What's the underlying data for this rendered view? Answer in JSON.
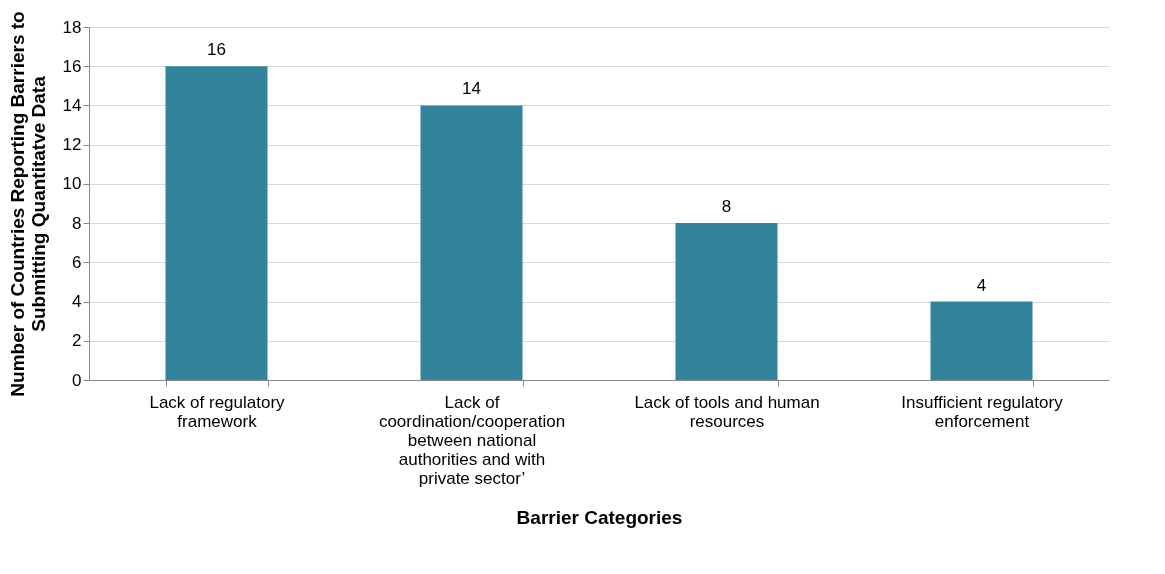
{
  "chart_data": {
    "type": "bar",
    "xlabel": "Barrier Categories",
    "ylabel": "Number of Countries Reporting Barriers to\nSubmitting Quantitatve Data",
    "categories": [
      "Lack of regulatory framework",
      "Lack of coordination/cooperation between national authorities and with private sector’",
      "Lack of tools and human resources",
      "Insufficient regulatory enforcement"
    ],
    "values": [
      16,
      14,
      8,
      4
    ],
    "color": "#31849b",
    "ylim": [
      0,
      18
    ],
    "yticks": [
      0,
      2,
      4,
      6,
      8,
      10,
      12,
      14,
      16,
      18
    ],
    "grid": "y",
    "data_labels": true
  }
}
